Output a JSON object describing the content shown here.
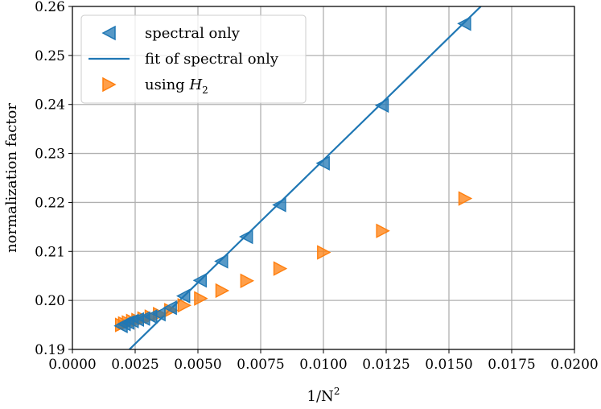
{
  "chart_data": {
    "type": "scatter",
    "title": "",
    "xlabel_main": "1/N",
    "xlabel_sup": "2",
    "ylabel": "normalization factor",
    "xlim": [
      0.0,
      0.02
    ],
    "ylim": [
      0.19,
      0.26
    ],
    "grid": true,
    "legend_position": "top-left",
    "xticks": [
      0.0,
      0.0025,
      0.005,
      0.0075,
      0.01,
      0.0125,
      0.015,
      0.0175,
      0.02
    ],
    "xtick_labels": [
      "0.0000",
      "0.0025",
      "0.0050",
      "0.0075",
      "0.0100",
      "0.0125",
      "0.0150",
      "0.0175",
      "0.0200"
    ],
    "yticks": [
      0.19,
      0.2,
      0.21,
      0.22,
      0.23,
      0.24,
      0.25,
      0.26
    ],
    "ytick_labels": [
      "0.19",
      "0.20",
      "0.21",
      "0.22",
      "0.23",
      "0.24",
      "0.25",
      "0.26"
    ],
    "series": [
      {
        "name": "spectral only",
        "kind": "marker",
        "marker": "triangle-left",
        "color": "#1f77b4",
        "x": [
          0.00195,
          0.00207,
          0.00222,
          0.00239,
          0.0026,
          0.00284,
          0.00313,
          0.00346,
          0.00391,
          0.00444,
          0.0051,
          0.00595,
          0.00694,
          0.00826,
          0.01,
          0.01235,
          0.01563
        ],
        "y": [
          0.1948,
          0.1952,
          0.1955,
          0.1958,
          0.1961,
          0.1963,
          0.1967,
          0.1972,
          0.1985,
          0.2009,
          0.2041,
          0.208,
          0.213,
          0.2195,
          0.228,
          0.2398,
          0.2565
        ]
      },
      {
        "name": "fit of spectral only",
        "kind": "line",
        "color": "#1f77b4",
        "x": [
          0.00227,
          0.01627
        ],
        "y": [
          0.19,
          0.26
        ]
      },
      {
        "name_prefix": "using ",
        "name_var": "H",
        "name_sub": "2",
        "kind": "marker",
        "marker": "triangle-right",
        "color": "#ff7f0e",
        "x": [
          0.00195,
          0.00207,
          0.00222,
          0.00239,
          0.0026,
          0.00284,
          0.00313,
          0.00346,
          0.00391,
          0.00444,
          0.0051,
          0.00595,
          0.00694,
          0.00826,
          0.01,
          0.01235,
          0.01563
        ],
        "y": [
          0.195,
          0.1953,
          0.1955,
          0.1958,
          0.196,
          0.1963,
          0.1967,
          0.1972,
          0.198,
          0.199,
          0.2004,
          0.202,
          0.204,
          0.2065,
          0.2098,
          0.2142,
          0.2208
        ]
      }
    ]
  }
}
